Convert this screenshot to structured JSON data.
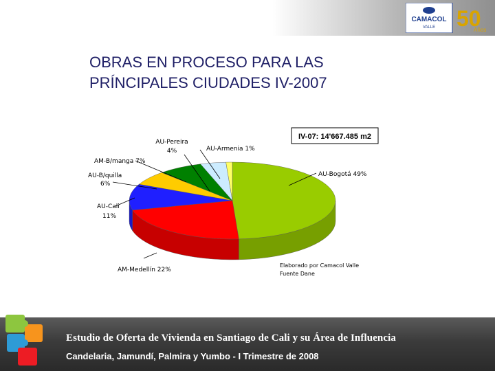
{
  "header": {
    "logo_text": "CAMACOL",
    "logo_subtext": "VALLE",
    "anniversary_number": "50",
    "anniversary_word": "Años"
  },
  "slide": {
    "title_line1": "OBRAS EN PROCESO PARA LAS",
    "title_line2": "PRÍNCIPALES CIUDADES IV-2007",
    "note_line1": "Elaborado por Camacol Valle",
    "note_line2": "Fuente Dane"
  },
  "footer": {
    "line1": "Estudio de Oferta de Vivienda en Santiago de Cali y su Área de Influencia",
    "line2": "Candelaria, Jamundí, Palmira y Yumbo - I Trimestre de 2008"
  },
  "chart_data": {
    "type": "pie",
    "title": "",
    "annotation": "IV-07: 14'667.485 m2",
    "slices": [
      {
        "name": "AU-Bogotá",
        "value": 49,
        "label": "AU-Bogotá 49%",
        "color": "#99cc00"
      },
      {
        "name": "AM-Medellín",
        "value": 22,
        "label": "AM-Medellín 22%",
        "color": "#ff0000"
      },
      {
        "name": "AU-Cali",
        "value": 11,
        "label_line1": "AU-Cali",
        "label_line2": "11%",
        "color": "#1f1fff"
      },
      {
        "name": "AU-B/quilla",
        "value": 6,
        "label_line1": "AU-B/quilla",
        "label_line2": "6%",
        "color": "#ffcc00"
      },
      {
        "name": "AM-B/manga",
        "value": 7,
        "label": "AM-B/manga 7%",
        "color": "#008000"
      },
      {
        "name": "AU-Pereira",
        "value": 4,
        "label_line1": "AU-Pereira",
        "label_line2": "4%",
        "color": "#ccecff"
      },
      {
        "name": "AU-Armenia",
        "value": 1,
        "label": "AU-Armenia 1%",
        "color": "#ffff66"
      }
    ]
  }
}
